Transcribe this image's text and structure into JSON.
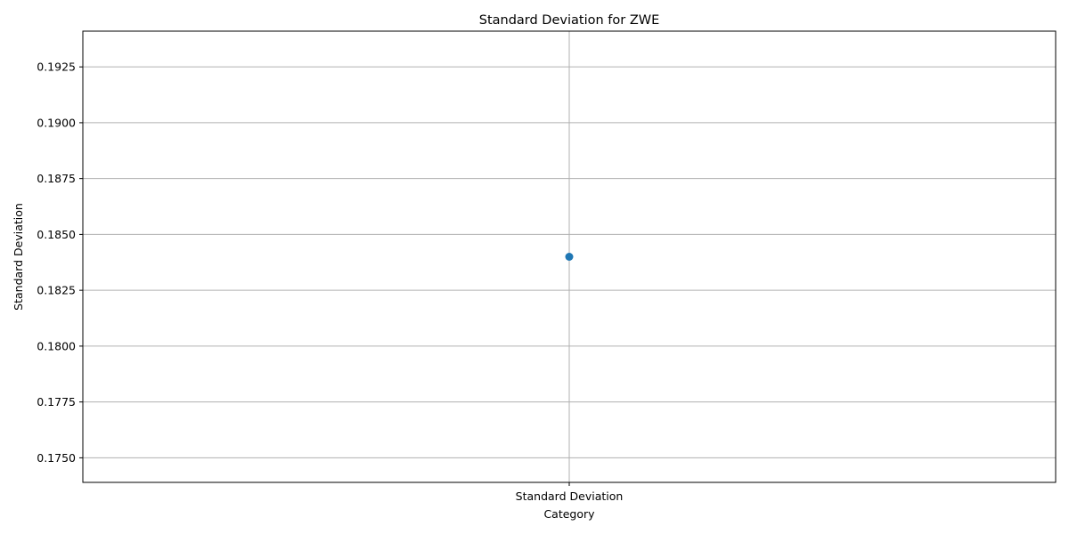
{
  "chart_data": {
    "type": "scatter",
    "title": "Standard Deviation for ZWE",
    "xlabel": "Category",
    "ylabel": "Standard Deviation",
    "categories": [
      "Standard Deviation"
    ],
    "series": [
      {
        "values": [
          0.184
        ],
        "color": "#1f77b4"
      }
    ],
    "ylim": [
      0.1739,
      0.1941
    ],
    "yticks": [
      0.175,
      0.1775,
      0.18,
      0.1825,
      0.185,
      0.1875,
      0.19,
      0.1925
    ],
    "ytick_labels": [
      "0.1750",
      "0.1775",
      "0.1800",
      "0.1825",
      "0.1850",
      "0.1875",
      "0.1900",
      "0.1925"
    ],
    "grid": true,
    "legend": "none"
  }
}
